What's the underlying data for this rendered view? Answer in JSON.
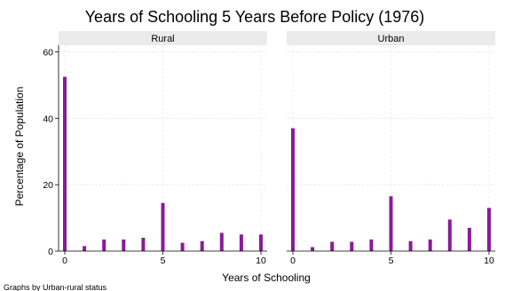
{
  "chart_data": {
    "type": "bar",
    "title": "Years of Schooling 5 Years Before Policy (1976)",
    "xlabel": "Years of Schooling",
    "ylabel": "Percentage of Population",
    "note": "Graphs by Urban-rural status",
    "xlim": [
      0,
      10
    ],
    "ylim": [
      0,
      62
    ],
    "x_ticks": [
      0,
      5,
      10
    ],
    "y_ticks": [
      0,
      20,
      40,
      60
    ],
    "grid": true,
    "bar_color": "#8B1A9B",
    "panels": [
      {
        "label": "Rural",
        "x": [
          0,
          1,
          2,
          3,
          4,
          5,
          6,
          7,
          8,
          9,
          10
        ],
        "values": [
          52.5,
          1.5,
          3.5,
          3.5,
          4.0,
          14.5,
          2.5,
          3.0,
          5.5,
          5.0,
          5.0
        ]
      },
      {
        "label": "Urban",
        "x": [
          0,
          1,
          2,
          3,
          4,
          5,
          6,
          7,
          8,
          9,
          10
        ],
        "values": [
          37.0,
          1.2,
          2.8,
          2.8,
          3.5,
          16.5,
          3.0,
          3.5,
          9.5,
          7.0,
          13.0
        ]
      }
    ]
  }
}
